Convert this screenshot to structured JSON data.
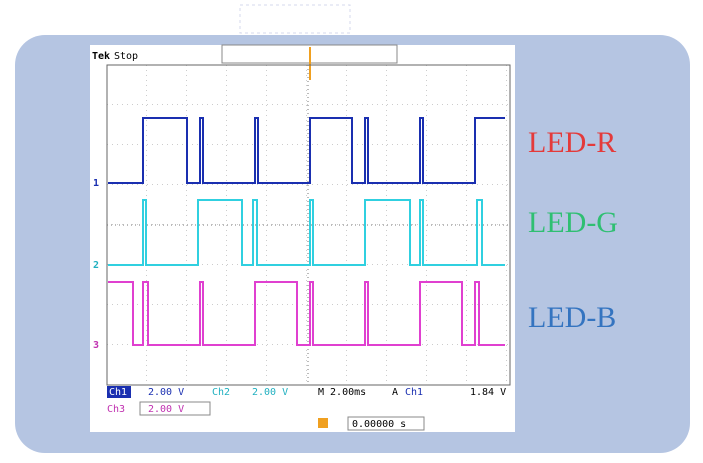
{
  "header": {
    "brand": "Tek",
    "status": "Stop"
  },
  "channel_markers": [
    "1",
    "2",
    "3"
  ],
  "labels": [
    "LED-R",
    "LED-G",
    "LED-B"
  ],
  "status_bar": {
    "ch1": {
      "name": "Ch1",
      "scale": "2.00 V"
    },
    "ch2": {
      "name": "Ch2",
      "scale": "2.00 V"
    },
    "ch3": {
      "name": "Ch3",
      "scale": "2.00 V"
    },
    "timebase": "M 2.00ms",
    "trigger": {
      "mode": "A",
      "source": "Ch1",
      "level": "1.84 V"
    },
    "position": "0.00000 s"
  }
}
